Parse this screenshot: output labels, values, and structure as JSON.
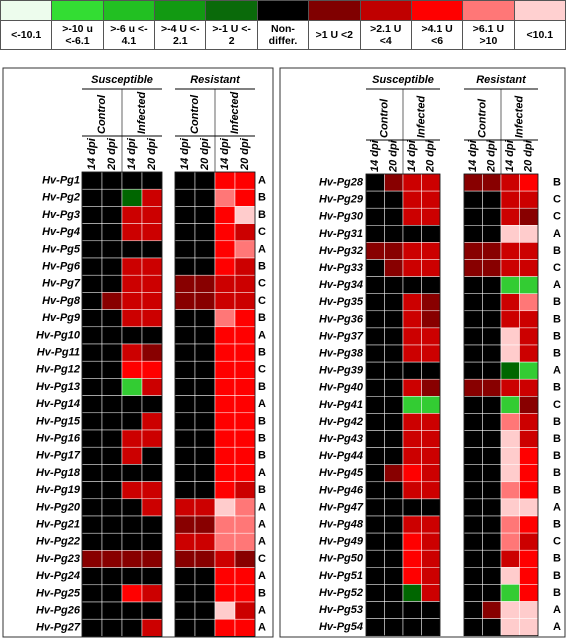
{
  "legend": [
    {
      "label": "<-10.1",
      "color": "#edfced"
    },
    {
      "label": ">-10 u\n<-6.1",
      "color": "#33dd33"
    },
    {
      "label": ">-6 u <-\n4.1",
      "color": "#22c022"
    },
    {
      "label": ">-4 U <-\n2.1",
      "color": "#129a12"
    },
    {
      "label": ">-1 U <-\n2",
      "color": "#0a6a0a"
    },
    {
      "label": "Non-\ndiffer.",
      "color": "#000000"
    },
    {
      "label": ">1 U <2",
      "color": "#800000"
    },
    {
      "label": ">2.1 U\n<4",
      "color": "#c00000"
    },
    {
      "label": ">4.1 U\n<6",
      "color": "#ff0000"
    },
    {
      "label": ">6.1 U\n>10",
      "color": "#ff7777"
    },
    {
      "label": "<10.1",
      "color": "#ffd0d0"
    }
  ],
  "headers": {
    "groups": [
      "Susceptible",
      "Resistant"
    ],
    "treatments": [
      "Control",
      "Infected"
    ],
    "times": [
      "14 dpi",
      "20 dpi"
    ]
  },
  "panels": [
    {
      "rows": [
        {
          "gene": "Hv-Pg1",
          "cells": [
            "#000",
            "#000",
            "#000",
            "#000",
            "#000",
            "#000",
            "#f00",
            "#f00"
          ],
          "group": "A"
        },
        {
          "gene": "Hv-Pg2",
          "cells": [
            "#000",
            "#000",
            "#060",
            "#c00",
            "#000",
            "#000",
            "#f77",
            "#f00"
          ],
          "group": "B"
        },
        {
          "gene": "Hv-Pg3",
          "cells": [
            "#000",
            "#000",
            "#c00",
            "#c00",
            "#000",
            "#000",
            "#f00",
            "#fcc"
          ],
          "group": "B"
        },
        {
          "gene": "Hv-Pg4",
          "cells": [
            "#000",
            "#000",
            "#c00",
            "#c00",
            "#000",
            "#000",
            "#f00",
            "#c00"
          ],
          "group": "C"
        },
        {
          "gene": "Hv-Pg5",
          "cells": [
            "#000",
            "#000",
            "#000",
            "#000",
            "#000",
            "#000",
            "#f00",
            "#f77"
          ],
          "group": "A"
        },
        {
          "gene": "Hv-Pg6",
          "cells": [
            "#000",
            "#000",
            "#c00",
            "#c00",
            "#000",
            "#000",
            "#f00",
            "#c00"
          ],
          "group": "B"
        },
        {
          "gene": "Hv-Pg7",
          "cells": [
            "#000",
            "#000",
            "#c00",
            "#c00",
            "#800",
            "#800",
            "#c00",
            "#c00"
          ],
          "group": "C"
        },
        {
          "gene": "Hv-Pg8",
          "cells": [
            "#000",
            "#800",
            "#c00",
            "#c00",
            "#800",
            "#800",
            "#c00",
            "#c00"
          ],
          "group": "C"
        },
        {
          "gene": "Hv-Pg9",
          "cells": [
            "#000",
            "#000",
            "#c00",
            "#c00",
            "#000",
            "#000",
            "#f77",
            "#f00"
          ],
          "group": "B"
        },
        {
          "gene": "Hv-Pg10",
          "cells": [
            "#000",
            "#000",
            "#000",
            "#000",
            "#000",
            "#000",
            "#f00",
            "#f00"
          ],
          "group": "A"
        },
        {
          "gene": "Hv-Pg11",
          "cells": [
            "#000",
            "#000",
            "#c00",
            "#800",
            "#000",
            "#000",
            "#f00",
            "#f00"
          ],
          "group": "B"
        },
        {
          "gene": "Hv-Pg12",
          "cells": [
            "#000",
            "#000",
            "#f00",
            "#f00",
            "#000",
            "#000",
            "#f00",
            "#f00"
          ],
          "group": "C"
        },
        {
          "gene": "Hv-Pg13",
          "cells": [
            "#000",
            "#000",
            "#3c3",
            "#c00",
            "#000",
            "#000",
            "#f00",
            "#f00"
          ],
          "group": "B"
        },
        {
          "gene": "Hv-Pg14",
          "cells": [
            "#000",
            "#000",
            "#000",
            "#000",
            "#000",
            "#000",
            "#f00",
            "#f00"
          ],
          "group": "A"
        },
        {
          "gene": "Hv-Pg15",
          "cells": [
            "#000",
            "#000",
            "#000",
            "#c00",
            "#000",
            "#000",
            "#f00",
            "#f00"
          ],
          "group": "B"
        },
        {
          "gene": "Hv-Pg16",
          "cells": [
            "#000",
            "#000",
            "#c00",
            "#c00",
            "#000",
            "#000",
            "#f00",
            "#f00"
          ],
          "group": "B"
        },
        {
          "gene": "Hv-Pg17",
          "cells": [
            "#000",
            "#000",
            "#c00",
            "#000",
            "#000",
            "#000",
            "#f00",
            "#f00"
          ],
          "group": "B"
        },
        {
          "gene": "Hv-Pg18",
          "cells": [
            "#000",
            "#000",
            "#000",
            "#000",
            "#000",
            "#000",
            "#f00",
            "#f00"
          ],
          "group": "A"
        },
        {
          "gene": "Hv-Pg19",
          "cells": [
            "#000",
            "#000",
            "#c00",
            "#c00",
            "#000",
            "#000",
            "#f00",
            "#c00"
          ],
          "group": "B"
        },
        {
          "gene": "Hv-Pg20",
          "cells": [
            "#000",
            "#000",
            "#000",
            "#c00",
            "#c00",
            "#c00",
            "#fcc",
            "#f77"
          ],
          "group": "A"
        },
        {
          "gene": "Hv-Pg21",
          "cells": [
            "#000",
            "#000",
            "#000",
            "#000",
            "#800",
            "#800",
            "#f77",
            "#f77"
          ],
          "group": "A"
        },
        {
          "gene": "Hv-Pg22",
          "cells": [
            "#000",
            "#000",
            "#000",
            "#000",
            "#c00",
            "#c00",
            "#f77",
            "#f77"
          ],
          "group": "A"
        },
        {
          "gene": "Hv-Pg23",
          "cells": [
            "#800",
            "#800",
            "#800",
            "#800",
            "#800",
            "#800",
            "#c00",
            "#800"
          ],
          "group": "C"
        },
        {
          "gene": "Hv-Pg24",
          "cells": [
            "#000",
            "#000",
            "#000",
            "#000",
            "#000",
            "#000",
            "#f00",
            "#f00"
          ],
          "group": "A"
        },
        {
          "gene": "Hv-Pg25",
          "cells": [
            "#000",
            "#000",
            "#f00",
            "#c00",
            "#000",
            "#000",
            "#f00",
            "#f00"
          ],
          "group": "B"
        },
        {
          "gene": "Hv-Pg26",
          "cells": [
            "#000",
            "#000",
            "#000",
            "#000",
            "#000",
            "#000",
            "#fcc",
            "#c00"
          ],
          "group": "A"
        },
        {
          "gene": "Hv-Pg27",
          "cells": [
            "#000",
            "#000",
            "#000",
            "#c00",
            "#000",
            "#000",
            "#f00",
            "#f00"
          ],
          "group": "A"
        }
      ]
    },
    {
      "rows": [
        {
          "gene": "Hv-Pg28",
          "cells": [
            "#000",
            "#800",
            "#c00",
            "#c00",
            "#800",
            "#800",
            "#c00",
            "#f00"
          ],
          "group": "B"
        },
        {
          "gene": "Hv-Pg29",
          "cells": [
            "#000",
            "#000",
            "#c00",
            "#c00",
            "#000",
            "#000",
            "#c00",
            "#c00"
          ],
          "group": "C"
        },
        {
          "gene": "Hv-Pg30",
          "cells": [
            "#000",
            "#000",
            "#c00",
            "#c00",
            "#000",
            "#000",
            "#c00",
            "#800"
          ],
          "group": "C"
        },
        {
          "gene": "Hv-Pg31",
          "cells": [
            "#000",
            "#000",
            "#000",
            "#000",
            "#000",
            "#000",
            "#fcc",
            "#fcc"
          ],
          "group": "A"
        },
        {
          "gene": "Hv-Pg32",
          "cells": [
            "#800",
            "#800",
            "#c00",
            "#c00",
            "#800",
            "#800",
            "#c00",
            "#c00"
          ],
          "group": "B"
        },
        {
          "gene": "Hv-Pg33",
          "cells": [
            "#000",
            "#800",
            "#c00",
            "#c00",
            "#800",
            "#800",
            "#c00",
            "#c00"
          ],
          "group": "C"
        },
        {
          "gene": "Hv-Pg34",
          "cells": [
            "#000",
            "#000",
            "#000",
            "#000",
            "#000",
            "#000",
            "#3c3",
            "#3c3"
          ],
          "group": "A"
        },
        {
          "gene": "Hv-Pg35",
          "cells": [
            "#000",
            "#000",
            "#c00",
            "#800",
            "#000",
            "#000",
            "#c00",
            "#f77"
          ],
          "group": "B"
        },
        {
          "gene": "Hv-Pg36",
          "cells": [
            "#000",
            "#000",
            "#c00",
            "#800",
            "#000",
            "#000",
            "#c00",
            "#c00"
          ],
          "group": "B"
        },
        {
          "gene": "Hv-Pg37",
          "cells": [
            "#000",
            "#000",
            "#c00",
            "#c00",
            "#000",
            "#000",
            "#fcc",
            "#c00"
          ],
          "group": "B"
        },
        {
          "gene": "Hv-Pg38",
          "cells": [
            "#000",
            "#000",
            "#c00",
            "#c00",
            "#000",
            "#000",
            "#fcc",
            "#c00"
          ],
          "group": "B"
        },
        {
          "gene": "Hv-Pg39",
          "cells": [
            "#000",
            "#000",
            "#000",
            "#000",
            "#000",
            "#000",
            "#060",
            "#3c3"
          ],
          "group": "A"
        },
        {
          "gene": "Hv-Pg40",
          "cells": [
            "#000",
            "#000",
            "#c00",
            "#800",
            "#800",
            "#800",
            "#c00",
            "#c00"
          ],
          "group": "B"
        },
        {
          "gene": "Hv-Pg41",
          "cells": [
            "#000",
            "#000",
            "#3c3",
            "#3c3",
            "#000",
            "#000",
            "#3c3",
            "#800"
          ],
          "group": "C"
        },
        {
          "gene": "Hv-Pg42",
          "cells": [
            "#000",
            "#000",
            "#c00",
            "#c00",
            "#000",
            "#000",
            "#f77",
            "#c00"
          ],
          "group": "B"
        },
        {
          "gene": "Hv-Pg43",
          "cells": [
            "#000",
            "#000",
            "#c00",
            "#c00",
            "#000",
            "#000",
            "#fcc",
            "#c00"
          ],
          "group": "B"
        },
        {
          "gene": "Hv-Pg44",
          "cells": [
            "#000",
            "#000",
            "#c00",
            "#c00",
            "#000",
            "#000",
            "#fcc",
            "#f00"
          ],
          "group": "B"
        },
        {
          "gene": "Hv-Pg45",
          "cells": [
            "#000",
            "#800",
            "#f00",
            "#c00",
            "#000",
            "#000",
            "#fcc",
            "#f00"
          ],
          "group": "B"
        },
        {
          "gene": "Hv-Pg46",
          "cells": [
            "#000",
            "#000",
            "#c00",
            "#c00",
            "#000",
            "#000",
            "#f77",
            "#f00"
          ],
          "group": "B"
        },
        {
          "gene": "Hv-Pg47",
          "cells": [
            "#000",
            "#000",
            "#000",
            "#000",
            "#000",
            "#000",
            "#fcc",
            "#fcc"
          ],
          "group": "A"
        },
        {
          "gene": "Hv-Pg48",
          "cells": [
            "#000",
            "#000",
            "#c00",
            "#c00",
            "#000",
            "#000",
            "#f77",
            "#f00"
          ],
          "group": "B"
        },
        {
          "gene": "Hv-Pg49",
          "cells": [
            "#000",
            "#000",
            "#f00",
            "#c00",
            "#000",
            "#000",
            "#f77",
            "#c00"
          ],
          "group": "C"
        },
        {
          "gene": "Hv-Pg50",
          "cells": [
            "#000",
            "#000",
            "#f00",
            "#c00",
            "#000",
            "#000",
            "#c00",
            "#f00"
          ],
          "group": "B"
        },
        {
          "gene": "Hv-Pg51",
          "cells": [
            "#000",
            "#000",
            "#f00",
            "#c00",
            "#000",
            "#000",
            "#fcc",
            "#f00"
          ],
          "group": "B"
        },
        {
          "gene": "Hv-Pg52",
          "cells": [
            "#000",
            "#000",
            "#060",
            "#c00",
            "#000",
            "#000",
            "#3c3",
            "#f00"
          ],
          "group": "B"
        },
        {
          "gene": "Hv-Pg53",
          "cells": [
            "#000",
            "#000",
            "#000",
            "#000",
            "#000",
            "#800",
            "#fcc",
            "#fcc"
          ],
          "group": "A"
        },
        {
          "gene": "Hv-Pg54",
          "cells": [
            "#000",
            "#000",
            "#000",
            "#000",
            "#000",
            "#000",
            "#fcc",
            "#fcc"
          ],
          "group": "A"
        }
      ]
    }
  ]
}
